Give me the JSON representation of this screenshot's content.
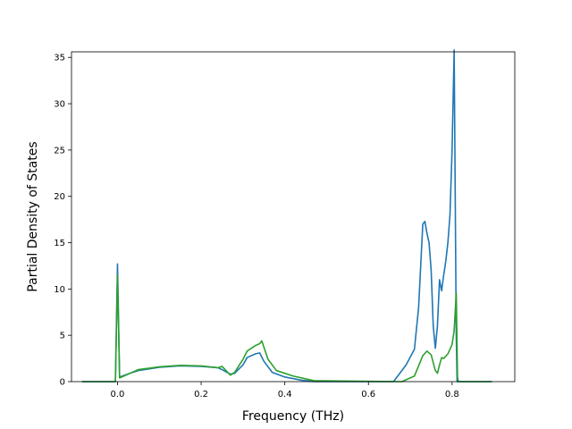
{
  "chart_data": {
    "type": "line",
    "xlabel": "Frequency (THz)",
    "ylabel": "Partial Density of States",
    "xlim": [
      -0.11,
      0.95
    ],
    "ylim": [
      0,
      35.6
    ],
    "xticks": [
      0.0,
      0.2,
      0.4,
      0.6,
      0.8
    ],
    "xtick_labels": [
      "0.0",
      "0.2",
      "0.4",
      "0.6",
      "0.8"
    ],
    "yticks": [
      0,
      5,
      10,
      15,
      20,
      25,
      30,
      35
    ],
    "ytick_labels": [
      "0",
      "5",
      "10",
      "15",
      "20",
      "25",
      "30",
      "35"
    ],
    "grid": false,
    "series": [
      {
        "color": "#1f77b4",
        "x": [
          -0.085,
          -0.005,
          0.0,
          0.005,
          0.03,
          0.05,
          0.1,
          0.15,
          0.2,
          0.24,
          0.25,
          0.27,
          0.28,
          0.3,
          0.31,
          0.33,
          0.34,
          0.35,
          0.37,
          0.4,
          0.44,
          0.46,
          0.47,
          0.66,
          0.69,
          0.71,
          0.72,
          0.73,
          0.735,
          0.74,
          0.745,
          0.75,
          0.755,
          0.76,
          0.765,
          0.77,
          0.775,
          0.78,
          0.785,
          0.79,
          0.795,
          0.8,
          0.805,
          0.81,
          0.812,
          0.814,
          0.815,
          0.82,
          0.895
        ],
        "y": [
          0,
          0,
          12.7,
          0.5,
          0.9,
          1.2,
          1.55,
          1.7,
          1.65,
          1.5,
          1.3,
          0.8,
          0.9,
          1.8,
          2.6,
          3.0,
          3.1,
          2.2,
          1.0,
          0.5,
          0.15,
          0.05,
          0,
          0,
          1.8,
          3.5,
          8.0,
          17.0,
          17.3,
          16.0,
          15.0,
          12.0,
          6.0,
          3.6,
          6.0,
          11.0,
          9.8,
          11.5,
          13.0,
          15.0,
          18.0,
          25.0,
          35.8,
          5.0,
          0,
          0,
          0,
          0,
          0
        ]
      },
      {
        "color": "#2ca02c",
        "x": [
          -0.085,
          -0.005,
          0.0,
          0.005,
          0.03,
          0.05,
          0.1,
          0.15,
          0.2,
          0.24,
          0.25,
          0.27,
          0.28,
          0.3,
          0.31,
          0.33,
          0.34,
          0.345,
          0.36,
          0.38,
          0.42,
          0.46,
          0.47,
          0.68,
          0.71,
          0.73,
          0.74,
          0.75,
          0.76,
          0.765,
          0.77,
          0.775,
          0.78,
          0.79,
          0.8,
          0.805,
          0.81,
          0.813,
          0.815,
          0.895
        ],
        "y": [
          0,
          0,
          11.5,
          0.4,
          0.9,
          1.3,
          1.6,
          1.75,
          1.7,
          1.5,
          1.65,
          0.7,
          1.0,
          2.4,
          3.3,
          3.9,
          4.1,
          4.4,
          2.4,
          1.2,
          0.6,
          0.2,
          0.1,
          0,
          0.6,
          2.8,
          3.3,
          2.9,
          1.2,
          0.9,
          1.8,
          2.6,
          2.5,
          3.0,
          4.0,
          5.5,
          9.6,
          0.5,
          0,
          0
        ]
      }
    ]
  }
}
